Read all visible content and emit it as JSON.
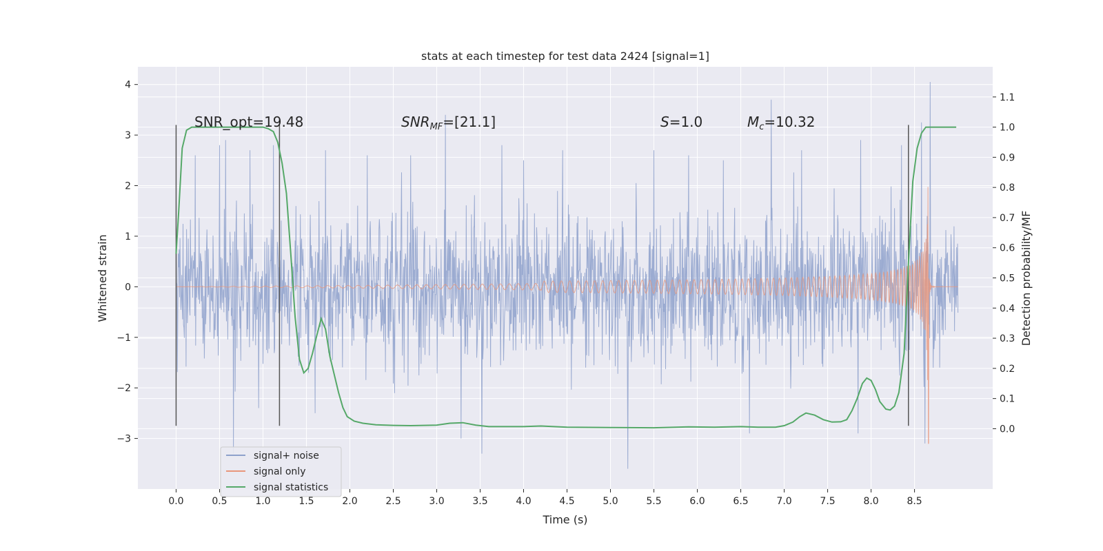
{
  "chart_data": {
    "type": "line",
    "title": "stats at each timestep for test data 2424 [signal=1]",
    "xlabel": "Time (s)",
    "ylabel_left": "Whitened strain",
    "ylabel_right": "Detection probability/MF",
    "xlim": [
      -0.44,
      9.4
    ],
    "ylim_left": [
      -4.0,
      4.35
    ],
    "ylim_right": [
      -0.2,
      1.2
    ],
    "xticks": [
      "0.0",
      "0.5",
      "1.0",
      "1.5",
      "2.0",
      "2.5",
      "3.0",
      "3.5",
      "4.0",
      "4.5",
      "5.0",
      "5.5",
      "6.0",
      "6.5",
      "7.0",
      "7.5",
      "8.0",
      "8.5"
    ],
    "yticks_left": [
      "4",
      "3",
      "2",
      "1",
      "0",
      "−1",
      "−2",
      "−3"
    ],
    "yticks_left_values": [
      4,
      3,
      2,
      1,
      0,
      -1,
      -2,
      -3
    ],
    "yticks_right": [
      "1.1",
      "1.0",
      "0.9",
      "0.8",
      "0.7",
      "0.6",
      "0.5",
      "0.4",
      "0.3",
      "0.2",
      "0.1",
      "0.0"
    ],
    "yticks_right_values": [
      1.1,
      1.0,
      0.9,
      0.8,
      0.7,
      0.6,
      0.5,
      0.4,
      0.3,
      0.2,
      0.1,
      0.0
    ],
    "grid": true,
    "annotations": {
      "snr_opt": "SNR_opt=19.48",
      "snr_mf_sym": "SNR",
      "snr_mf_sub": "MF",
      "snr_mf_rest": "=[21.1]",
      "s_sym": "S",
      "s_rest": "=1.0",
      "mc_sym": "M",
      "mc_sub": "c",
      "mc_rest": "=10.32"
    },
    "vertical_markers": [
      0.0,
      1.19,
      8.43
    ],
    "vertical_marker_range": [
      -2.75,
      3.2
    ],
    "noise_series": {
      "name": "signal+ noise",
      "color": "#8da0cb",
      "x_start": 0.0,
      "x_end": 9.0,
      "typical_envelope": 1.4,
      "peaks": [
        {
          "x": 0.22,
          "v": 2.6
        },
        {
          "x": 0.5,
          "v": 2.8
        },
        {
          "x": 0.57,
          "v": 2.9
        },
        {
          "x": 0.66,
          "v": -3.3
        },
        {
          "x": 0.85,
          "v": 2.7
        },
        {
          "x": 0.95,
          "v": -2.4
        },
        {
          "x": 1.12,
          "v": 2.8
        },
        {
          "x": 1.6,
          "v": -2.5
        },
        {
          "x": 1.72,
          "v": 2.7
        },
        {
          "x": 2.2,
          "v": 2.6
        },
        {
          "x": 2.7,
          "v": 2.6
        },
        {
          "x": 3.1,
          "v": 3.4
        },
        {
          "x": 3.28,
          "v": -3.0
        },
        {
          "x": 3.52,
          "v": -3.3
        },
        {
          "x": 3.75,
          "v": 2.8
        },
        {
          "x": 4.0,
          "v": 2.5
        },
        {
          "x": 4.45,
          "v": 2.7
        },
        {
          "x": 5.2,
          "v": -3.6
        },
        {
          "x": 5.5,
          "v": 2.7
        },
        {
          "x": 5.9,
          "v": 2.6
        },
        {
          "x": 6.3,
          "v": 2.5
        },
        {
          "x": 6.85,
          "v": 3.7
        },
        {
          "x": 6.6,
          "v": -2.9
        },
        {
          "x": 7.2,
          "v": 2.7
        },
        {
          "x": 7.85,
          "v": -2.9
        },
        {
          "x": 7.88,
          "v": 2.9
        },
        {
          "x": 8.35,
          "v": 2.8
        },
        {
          "x": 8.68,
          "v": 4.05
        },
        {
          "x": 8.62,
          "v": -3.1
        },
        {
          "x": 8.58,
          "v": 3.25
        }
      ]
    },
    "signal_series": {
      "name": "signal only",
      "color": "#e9967a",
      "x_start": 0.0,
      "x_end": 8.66,
      "merger_time": 8.66,
      "peak_amplitude": 2.2,
      "min_value": -3.1,
      "ringdown_end": 9.0
    },
    "stats_series": {
      "name": "signal statistics",
      "color": "#55a868",
      "x": [
        0.0,
        0.03,
        0.07,
        0.12,
        0.18,
        0.25,
        0.35,
        0.5,
        0.7,
        0.9,
        1.0,
        1.06,
        1.12,
        1.17,
        1.22,
        1.27,
        1.32,
        1.37,
        1.42,
        1.47,
        1.52,
        1.57,
        1.62,
        1.67,
        1.72,
        1.77,
        1.82,
        1.87,
        1.92,
        1.97,
        2.05,
        2.15,
        2.3,
        2.5,
        2.7,
        3.0,
        3.15,
        3.3,
        3.45,
        3.6,
        4.0,
        4.2,
        4.5,
        5.0,
        5.5,
        5.9,
        6.2,
        6.5,
        6.7,
        6.9,
        7.0,
        7.1,
        7.18,
        7.25,
        7.35,
        7.45,
        7.55,
        7.65,
        7.72,
        7.78,
        7.84,
        7.9,
        7.95,
        8.0,
        8.05,
        8.1,
        8.17,
        8.22,
        8.27,
        8.32,
        8.38,
        8.43,
        8.48,
        8.53,
        8.58,
        8.63,
        8.7,
        8.8,
        8.9,
        8.98
      ],
      "values": [
        0.58,
        0.72,
        0.93,
        0.99,
        1.0,
        1.0,
        1.0,
        1.0,
        1.0,
        1.0,
        1.0,
        0.995,
        0.985,
        0.95,
        0.88,
        0.78,
        0.58,
        0.37,
        0.23,
        0.185,
        0.2,
        0.25,
        0.31,
        0.365,
        0.33,
        0.24,
        0.18,
        0.12,
        0.07,
        0.04,
        0.025,
        0.018,
        0.013,
        0.011,
        0.01,
        0.012,
        0.018,
        0.02,
        0.012,
        0.007,
        0.007,
        0.009,
        0.005,
        0.004,
        0.003,
        0.006,
        0.005,
        0.007,
        0.005,
        0.005,
        0.01,
        0.022,
        0.04,
        0.052,
        0.045,
        0.03,
        0.022,
        0.023,
        0.03,
        0.06,
        0.1,
        0.15,
        0.168,
        0.16,
        0.13,
        0.09,
        0.065,
        0.062,
        0.075,
        0.12,
        0.25,
        0.55,
        0.82,
        0.93,
        0.98,
        1.0,
        1.0,
        1.0,
        1.0,
        1.0
      ]
    },
    "legend": {
      "position": "lower-left",
      "entries": [
        {
          "label": "signal+ noise",
          "color": "#8da0cb"
        },
        {
          "label": "signal only",
          "color": "#e9967a"
        },
        {
          "label": "signal statistics",
          "color": "#55a868"
        }
      ]
    }
  }
}
